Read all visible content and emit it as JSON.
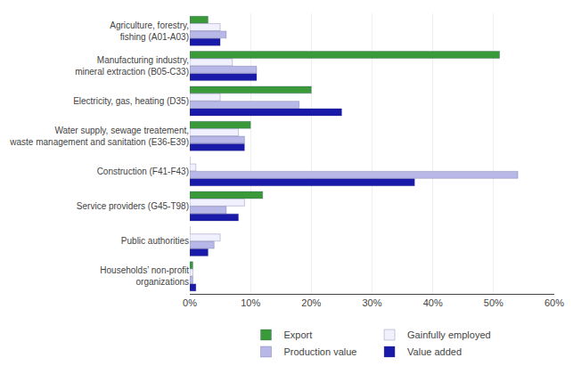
{
  "chart_data": {
    "type": "bar",
    "orientation": "horizontal",
    "categories": [
      "Agriculture, forestry,\nfishing (A01-A03)",
      "Manufacturing industry,\nmineral extraction (B05-C33)",
      "Electricity, gas, heating (D35)",
      "Water supply, sewage treatement,\nwaste management and sanitation (E36-E39)",
      "Construction (F41-F43)",
      "Service providers (G45-T98)",
      "Public authorities",
      "Households’ non-profit\norganizations"
    ],
    "series": [
      {
        "name": "Export",
        "color": "#3a9a3a",
        "values": [
          3,
          51,
          20,
          10,
          0,
          12,
          0,
          0.5
        ]
      },
      {
        "name": "Gainfully employed",
        "color": "#f0f0ff",
        "values": [
          5,
          7,
          5,
          8,
          1,
          9,
          5,
          0.5
        ]
      },
      {
        "name": "Production value",
        "color": "#b8b8e8",
        "values": [
          6,
          11,
          18,
          9,
          54,
          6,
          4,
          0.5
        ]
      },
      {
        "name": "Value added",
        "color": "#1a1aaa",
        "values": [
          5,
          11,
          25,
          9,
          37,
          8,
          3,
          1.0
        ]
      }
    ],
    "xlim": [
      0,
      60
    ],
    "xticks": [
      {
        "value": 0,
        "label": "0%"
      },
      {
        "value": 10,
        "label": "10%"
      },
      {
        "value": 20,
        "label": "20%"
      },
      {
        "value": 30,
        "label": "30%"
      },
      {
        "value": 40,
        "label": "40%"
      },
      {
        "value": 50,
        "label": "50%"
      },
      {
        "value": 60,
        "label": "60%"
      }
    ],
    "grid": true,
    "legend": "bottom"
  }
}
